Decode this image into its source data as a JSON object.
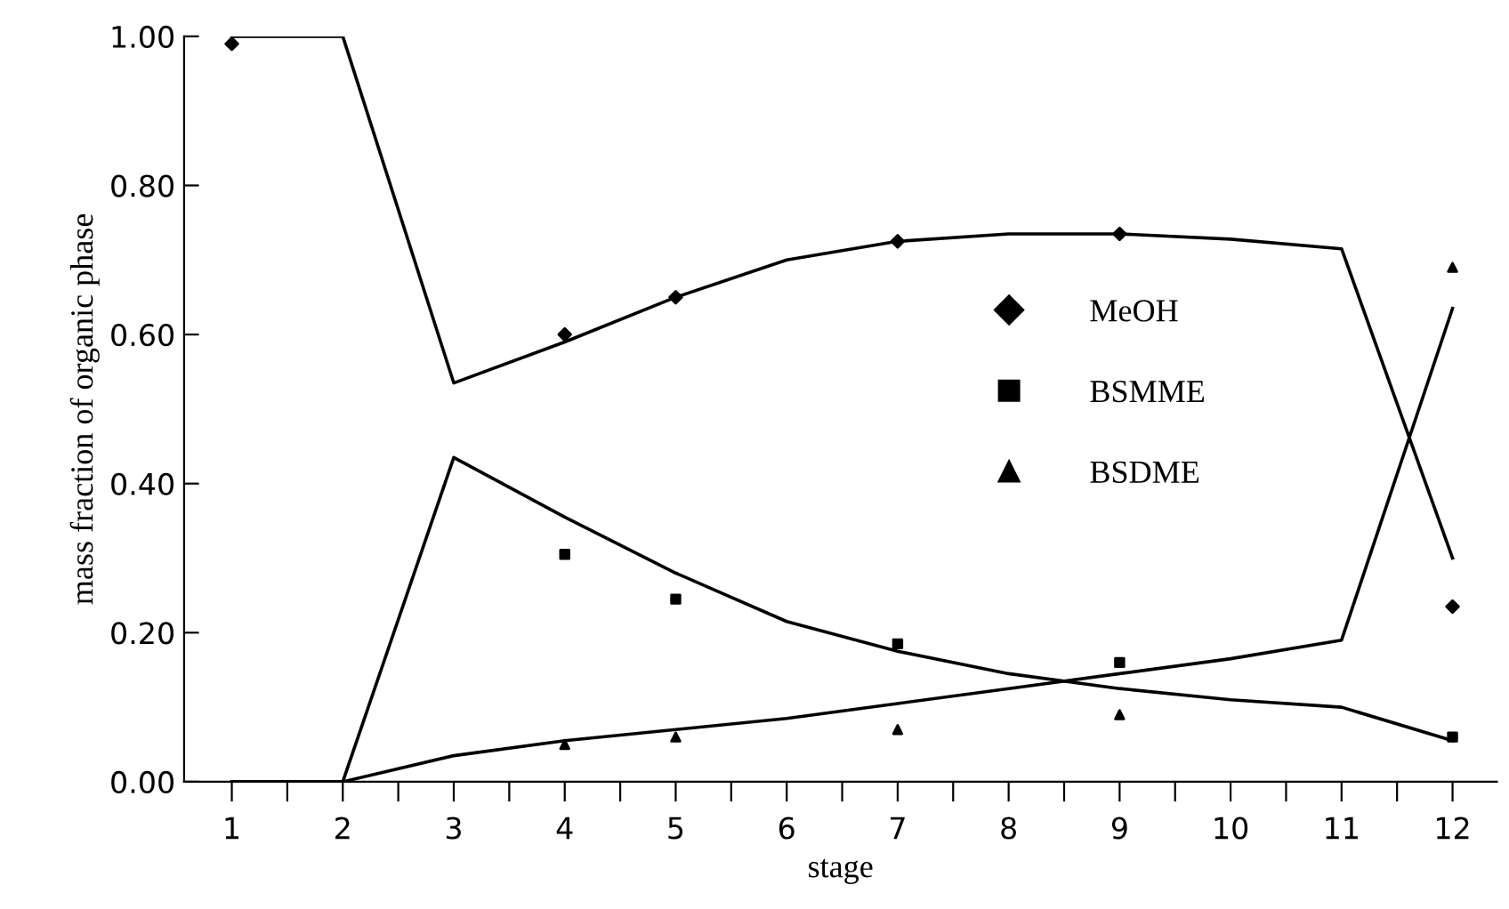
{
  "chart_data": {
    "type": "line",
    "xlabel": "stage",
    "ylabel": "mass fraction of organic phase",
    "xlim": [
      0.57,
      12.4
    ],
    "ylim": [
      0,
      1.0
    ],
    "xticks": [
      {
        "value": 1,
        "label": "1"
      },
      {
        "value": 1.5,
        "label": null
      },
      {
        "value": 2,
        "label": "2"
      },
      {
        "value": 2.5,
        "label": null
      },
      {
        "value": 3,
        "label": "3"
      },
      {
        "value": 3.5,
        "label": null
      },
      {
        "value": 4,
        "label": "4"
      },
      {
        "value": 4.5,
        "label": null
      },
      {
        "value": 5,
        "label": "5"
      },
      {
        "value": 5.5,
        "label": null
      },
      {
        "value": 6,
        "label": "6"
      },
      {
        "value": 6.5,
        "label": null
      },
      {
        "value": 7,
        "label": "7"
      },
      {
        "value": 7.5,
        "label": null
      },
      {
        "value": 8,
        "label": "8"
      },
      {
        "value": 8.5,
        "label": null
      },
      {
        "value": 9,
        "label": "9"
      },
      {
        "value": 9.5,
        "label": null
      },
      {
        "value": 10,
        "label": "10"
      },
      {
        "value": 10.5,
        "label": null
      },
      {
        "value": 11,
        "label": "11"
      },
      {
        "value": 11.5,
        "label": null
      },
      {
        "value": 12,
        "label": "12"
      }
    ],
    "yticks": [
      {
        "value": 0,
        "label": "0.00"
      },
      {
        "value": 0.2,
        "label": "0.20"
      },
      {
        "value": 0.4,
        "label": "0.40"
      },
      {
        "value": 0.6,
        "label": "0.60"
      },
      {
        "value": 0.8,
        "label": "0.80"
      },
      {
        "value": 1.0,
        "label": "1.00"
      }
    ],
    "grid": false,
    "legend": "right",
    "line_style": "solid",
    "series": [
      {
        "type": "line",
        "color": "#000000",
        "marker": "none",
        "x": [
          1,
          2,
          3,
          4,
          5,
          6,
          7,
          8,
          9,
          10,
          11,
          12
        ],
        "values": [
          1.0,
          1.0,
          0.535,
          0.59,
          0.65,
          0.7,
          0.725,
          0.735,
          0.735,
          0.728,
          0.715,
          0.3
        ]
      },
      {
        "type": "line",
        "color": "#000000",
        "marker": "none",
        "x": [
          1,
          2,
          3,
          4,
          5,
          6,
          7,
          8,
          9,
          10,
          11,
          12
        ],
        "values": [
          0,
          0,
          0.435,
          0.355,
          0.28,
          0.215,
          0.175,
          0.145,
          0.125,
          0.11,
          0.1,
          0.055
        ]
      },
      {
        "type": "line",
        "color": "#000000",
        "marker": "none",
        "x": [
          1,
          2,
          3,
          4,
          5,
          6,
          7,
          8,
          9,
          10,
          11,
          12
        ],
        "values": [
          0,
          0,
          0.035,
          0.055,
          0.07,
          0.085,
          0.105,
          0.125,
          0.145,
          0.165,
          0.19,
          0.635
        ]
      },
      {
        "type": "scatter",
        "name": "MeOH",
        "color": "#000000",
        "marker": "diamond",
        "x": [
          1,
          4,
          5,
          7,
          9,
          12
        ],
        "values": [
          0.99,
          0.6,
          0.65,
          0.725,
          0.735,
          0.235
        ]
      },
      {
        "type": "scatter",
        "name": "BSMME",
        "color": "#000000",
        "marker": "square",
        "x": [
          4,
          5,
          7,
          9,
          12
        ],
        "values": [
          0.305,
          0.245,
          0.185,
          0.16,
          0.06
        ]
      },
      {
        "type": "scatter",
        "name": "BSDME",
        "color": "#000000",
        "marker": "triangle",
        "x": [
          4,
          5,
          7,
          9,
          12
        ],
        "values": [
          0.05,
          0.06,
          0.07,
          0.09,
          0.69
        ]
      }
    ]
  }
}
